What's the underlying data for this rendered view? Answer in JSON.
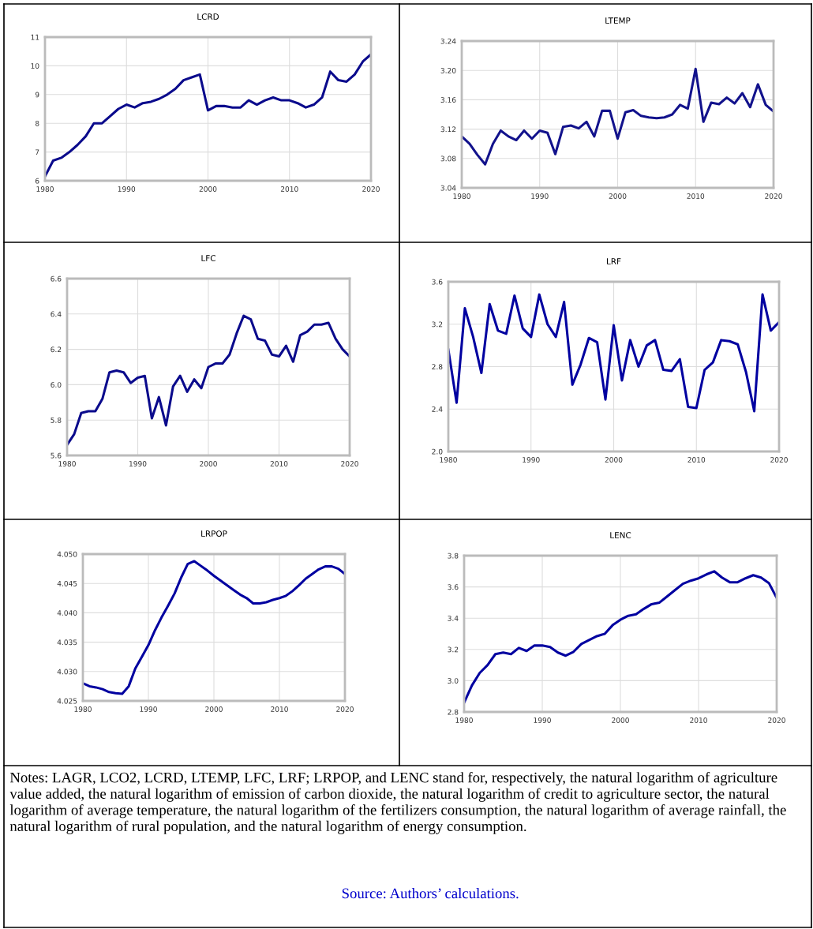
{
  "chart_data": [
    {
      "type": "line",
      "title": "LCRD",
      "color": "#0a0a8c",
      "grid": true,
      "line_style": "solid",
      "xlim": [
        1980,
        2020
      ],
      "xticks": [
        1980,
        1990,
        2000,
        2010,
        2020
      ],
      "ylim": [
        6,
        11
      ],
      "yticks": [
        6,
        7,
        8,
        9,
        10,
        11
      ],
      "x": [
        1980,
        1981,
        1982,
        1983,
        1984,
        1985,
        1986,
        1987,
        1988,
        1989,
        1990,
        1991,
        1992,
        1993,
        1994,
        1995,
        1996,
        1997,
        1998,
        1999,
        2000,
        2001,
        2002,
        2003,
        2004,
        2005,
        2006,
        2007,
        2008,
        2009,
        2010,
        2011,
        2012,
        2013,
        2014,
        2015,
        2016,
        2017,
        2018,
        2019,
        2020
      ],
      "values": [
        6.15,
        6.7,
        6.8,
        7.0,
        7.25,
        7.55,
        8.0,
        8.0,
        8.25,
        8.5,
        8.65,
        8.55,
        8.7,
        8.75,
        8.85,
        9.0,
        9.2,
        9.5,
        9.6,
        9.7,
        8.45,
        8.6,
        8.6,
        8.55,
        8.55,
        8.8,
        8.65,
        8.8,
        8.9,
        8.8,
        8.8,
        8.7,
        8.55,
        8.65,
        8.9,
        9.8,
        9.5,
        9.45,
        9.7,
        10.15,
        10.4
      ]
    },
    {
      "type": "line",
      "title": "LTEMP",
      "color": "#12128c",
      "grid": true,
      "line_style": "solid",
      "xlim": [
        1980,
        2020
      ],
      "xticks": [
        1980,
        1990,
        2000,
        2010,
        2020
      ],
      "ylim": [
        3.04,
        3.24
      ],
      "yticks": [
        3.04,
        3.08,
        3.12,
        3.16,
        {
          "value": 3.2,
          "label": "3.20"
        },
        3.24
      ],
      "x": [
        1980,
        1981,
        1982,
        1983,
        1984,
        1985,
        1986,
        1987,
        1988,
        1989,
        1990,
        1991,
        1992,
        1993,
        1994,
        1995,
        1996,
        1997,
        1998,
        1999,
        2000,
        2001,
        2002,
        2003,
        2004,
        2005,
        2006,
        2007,
        2008,
        2009,
        2010,
        2011,
        2012,
        2013,
        2014,
        2015,
        2016,
        2017,
        2018,
        2019,
        2020
      ],
      "values": [
        3.11,
        3.1,
        3.085,
        3.072,
        3.1,
        3.118,
        3.11,
        3.105,
        3.118,
        3.107,
        3.118,
        3.115,
        3.086,
        3.123,
        3.125,
        3.121,
        3.13,
        3.11,
        3.145,
        3.145,
        3.107,
        3.143,
        3.146,
        3.138,
        3.136,
        3.135,
        3.136,
        3.14,
        3.153,
        3.148,
        3.202,
        3.13,
        3.156,
        3.154,
        3.163,
        3.155,
        3.169,
        3.15,
        3.181,
        3.153,
        3.144
      ]
    },
    {
      "type": "line",
      "title": "LFC",
      "color": "#0a0a8c",
      "grid": true,
      "line_style": "solid",
      "xlim": [
        1980,
        2020
      ],
      "xticks": [
        1980,
        1990,
        2000,
        2010,
        2020
      ],
      "ylim": [
        5.6,
        6.6
      ],
      "yticks": [
        5.6,
        5.8,
        {
          "value": 6.0,
          "label": "6.0"
        },
        6.2,
        6.4,
        6.6
      ],
      "x": [
        1980,
        1981,
        1982,
        1983,
        1984,
        1985,
        1986,
        1987,
        1988,
        1989,
        1990,
        1991,
        1992,
        1993,
        1994,
        1995,
        1996,
        1997,
        1998,
        1999,
        2000,
        2001,
        2002,
        2003,
        2004,
        2005,
        2006,
        2007,
        2008,
        2009,
        2010,
        2011,
        2012,
        2013,
        2014,
        2015,
        2016,
        2017,
        2018,
        2019,
        2020
      ],
      "values": [
        5.66,
        5.72,
        5.84,
        5.85,
        5.85,
        5.92,
        6.07,
        6.08,
        6.07,
        6.01,
        6.04,
        6.05,
        5.81,
        5.93,
        5.77,
        5.99,
        6.05,
        5.96,
        6.03,
        5.98,
        6.1,
        6.12,
        6.12,
        6.17,
        6.29,
        6.39,
        6.37,
        6.26,
        6.25,
        6.17,
        6.16,
        6.22,
        6.13,
        6.28,
        6.3,
        6.34,
        6.34,
        6.35,
        6.26,
        6.2,
        6.16
      ]
    },
    {
      "type": "line",
      "title": "LRF",
      "color": "#0000a0",
      "grid": true,
      "line_style": "solid",
      "xlim": [
        1980,
        2020
      ],
      "xticks": [
        1980,
        1990,
        2000,
        2010,
        2020
      ],
      "ylim": [
        2.0,
        3.6
      ],
      "yticks": [
        {
          "value": 2.0,
          "label": "2.0"
        },
        2.4,
        2.8,
        3.2,
        3.6
      ],
      "x": [
        1980,
        1981,
        1982,
        1983,
        1984,
        1985,
        1986,
        1987,
        1988,
        1989,
        1990,
        1991,
        1992,
        1993,
        1994,
        1995,
        1996,
        1997,
        1998,
        1999,
        2000,
        2001,
        2002,
        2003,
        2004,
        2005,
        2006,
        2007,
        2008,
        2009,
        2010,
        2011,
        2012,
        2013,
        2014,
        2015,
        2016,
        2017,
        2018,
        2019,
        2020
      ],
      "values": [
        2.96,
        2.46,
        3.35,
        3.08,
        2.74,
        3.39,
        3.14,
        3.11,
        3.47,
        3.16,
        3.08,
        3.48,
        3.2,
        3.08,
        3.41,
        2.63,
        2.82,
        3.07,
        3.03,
        2.49,
        3.19,
        2.67,
        3.05,
        2.8,
        3.0,
        3.05,
        2.77,
        2.76,
        2.87,
        2.42,
        2.41,
        2.77,
        2.84,
        3.05,
        3.04,
        3.01,
        2.75,
        2.38,
        3.48,
        3.14,
        3.22
      ]
    },
    {
      "type": "line",
      "title": "LRPOP",
      "color": "#0000a0",
      "grid": true,
      "line_style": "solid",
      "xlim": [
        1980,
        2020
      ],
      "xticks": [
        1980,
        1990,
        2000,
        2010,
        2020
      ],
      "ylim": [
        4.025,
        4.05
      ],
      "yticks": [
        4.025,
        {
          "value": 4.03,
          "label": "4.030"
        },
        4.035,
        {
          "value": 4.04,
          "label": "4.040"
        },
        4.045,
        {
          "value": 4.05,
          "label": "4.050"
        }
      ],
      "x": [
        1980,
        1981,
        1982,
        1983,
        1984,
        1985,
        1986,
        1987,
        1988,
        1989,
        1990,
        1991,
        1992,
        1993,
        1994,
        1995,
        1996,
        1997,
        1998,
        1999,
        2000,
        2001,
        2002,
        2003,
        2004,
        2005,
        2006,
        2007,
        2008,
        2009,
        2010,
        2011,
        2012,
        2013,
        2014,
        2015,
        2016,
        2017,
        2018,
        2019,
        2020
      ],
      "values": [
        4.028,
        4.0275,
        4.0273,
        4.027,
        4.0265,
        4.0263,
        4.0262,
        4.0275,
        4.0305,
        4.0325,
        4.0345,
        4.037,
        4.0392,
        4.0412,
        4.0433,
        4.046,
        4.0483,
        4.0488,
        4.048,
        4.0472,
        4.0463,
        4.0455,
        4.0447,
        4.0439,
        4.0431,
        4.0425,
        4.0416,
        4.0416,
        4.0418,
        4.0422,
        4.0425,
        4.0429,
        4.0437,
        4.0447,
        4.0458,
        4.0466,
        4.0474,
        4.0479,
        4.0479,
        4.0475,
        4.0466
      ]
    },
    {
      "type": "line",
      "title": "LENC",
      "color": "#0000a0",
      "grid": true,
      "line_style": "solid",
      "xlim": [
        1980,
        2020
      ],
      "xticks": [
        1980,
        1990,
        2000,
        2010,
        2020
      ],
      "ylim": [
        2.8,
        3.8
      ],
      "yticks": [
        2.8,
        {
          "value": 3.0,
          "label": "3.0"
        },
        3.2,
        3.4,
        3.6,
        3.8
      ],
      "x": [
        1980,
        1981,
        1982,
        1983,
        1984,
        1985,
        1986,
        1987,
        1988,
        1989,
        1990,
        1991,
        1992,
        1993,
        1994,
        1995,
        1996,
        1997,
        1998,
        1999,
        2000,
        2001,
        2002,
        2003,
        2004,
        2005,
        2006,
        2007,
        2008,
        2009,
        2010,
        2011,
        2012,
        2013,
        2014,
        2015,
        2016,
        2017,
        2018,
        2019,
        2020
      ],
      "values": [
        2.86,
        2.97,
        3.05,
        3.1,
        3.17,
        3.18,
        3.17,
        3.21,
        3.19,
        3.225,
        3.225,
        3.215,
        3.18,
        3.16,
        3.185,
        3.235,
        3.26,
        3.285,
        3.3,
        3.355,
        3.39,
        3.415,
        3.425,
        3.46,
        3.49,
        3.5,
        3.54,
        3.58,
        3.62,
        3.64,
        3.655,
        3.68,
        3.7,
        3.66,
        3.63,
        3.63,
        3.655,
        3.675,
        3.66,
        3.625,
        3.53
      ],
      "annotations": [
        "Notes: LAGR, LCO2, LCRD, LTEMP, LFC, LRF; LRPOP, and LENC stand for, respectively, the natural logarithm of agriculture value added, the natural logarithm of emission of carbon dioxide, the natural logarithm of credit to agriculture sector, the natural logarithm of average temperature, the natural logarithm of the fertilizers consumption, the natural logarithm of average rainfall, the natural logarithm of rural population, and the natural logarithm of energy consumption.",
        "Source: Authors’ calculations."
      ]
    }
  ]
}
